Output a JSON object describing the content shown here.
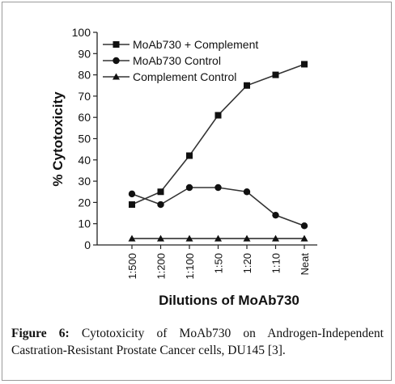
{
  "chart_data": {
    "type": "line",
    "categories": [
      "1:500",
      "1:200",
      "1:100",
      "1:50",
      "1:20",
      "1:10",
      "Neat"
    ],
    "series": [
      {
        "name": "MoAb730 + Complement",
        "marker": "square",
        "values": [
          19,
          25,
          42,
          61,
          75,
          80,
          85
        ]
      },
      {
        "name": "MoAb730 Control",
        "marker": "circle",
        "values": [
          24,
          19,
          27,
          27,
          25,
          14,
          9
        ]
      },
      {
        "name": "Complement Control",
        "marker": "triangle",
        "values": [
          3,
          3,
          3,
          3,
          3,
          3,
          3
        ]
      }
    ],
    "xlabel": "Dilutions of MoAb730",
    "ylabel": "% Cytotoxicity",
    "ylim": [
      0,
      100
    ],
    "yticks": [
      0,
      10,
      20,
      30,
      40,
      50,
      60,
      70,
      80,
      90,
      100
    ],
    "grid": false,
    "legend_position": "top-left",
    "colors": {
      "line": "#333333",
      "marker": "#111111"
    }
  },
  "caption": {
    "label": "Figure 6:",
    "text": "Cytotoxicity of MoAb730 on Androgen-Independent Castration-Resistant Prostate Cancer cells, DU145 [3]."
  }
}
